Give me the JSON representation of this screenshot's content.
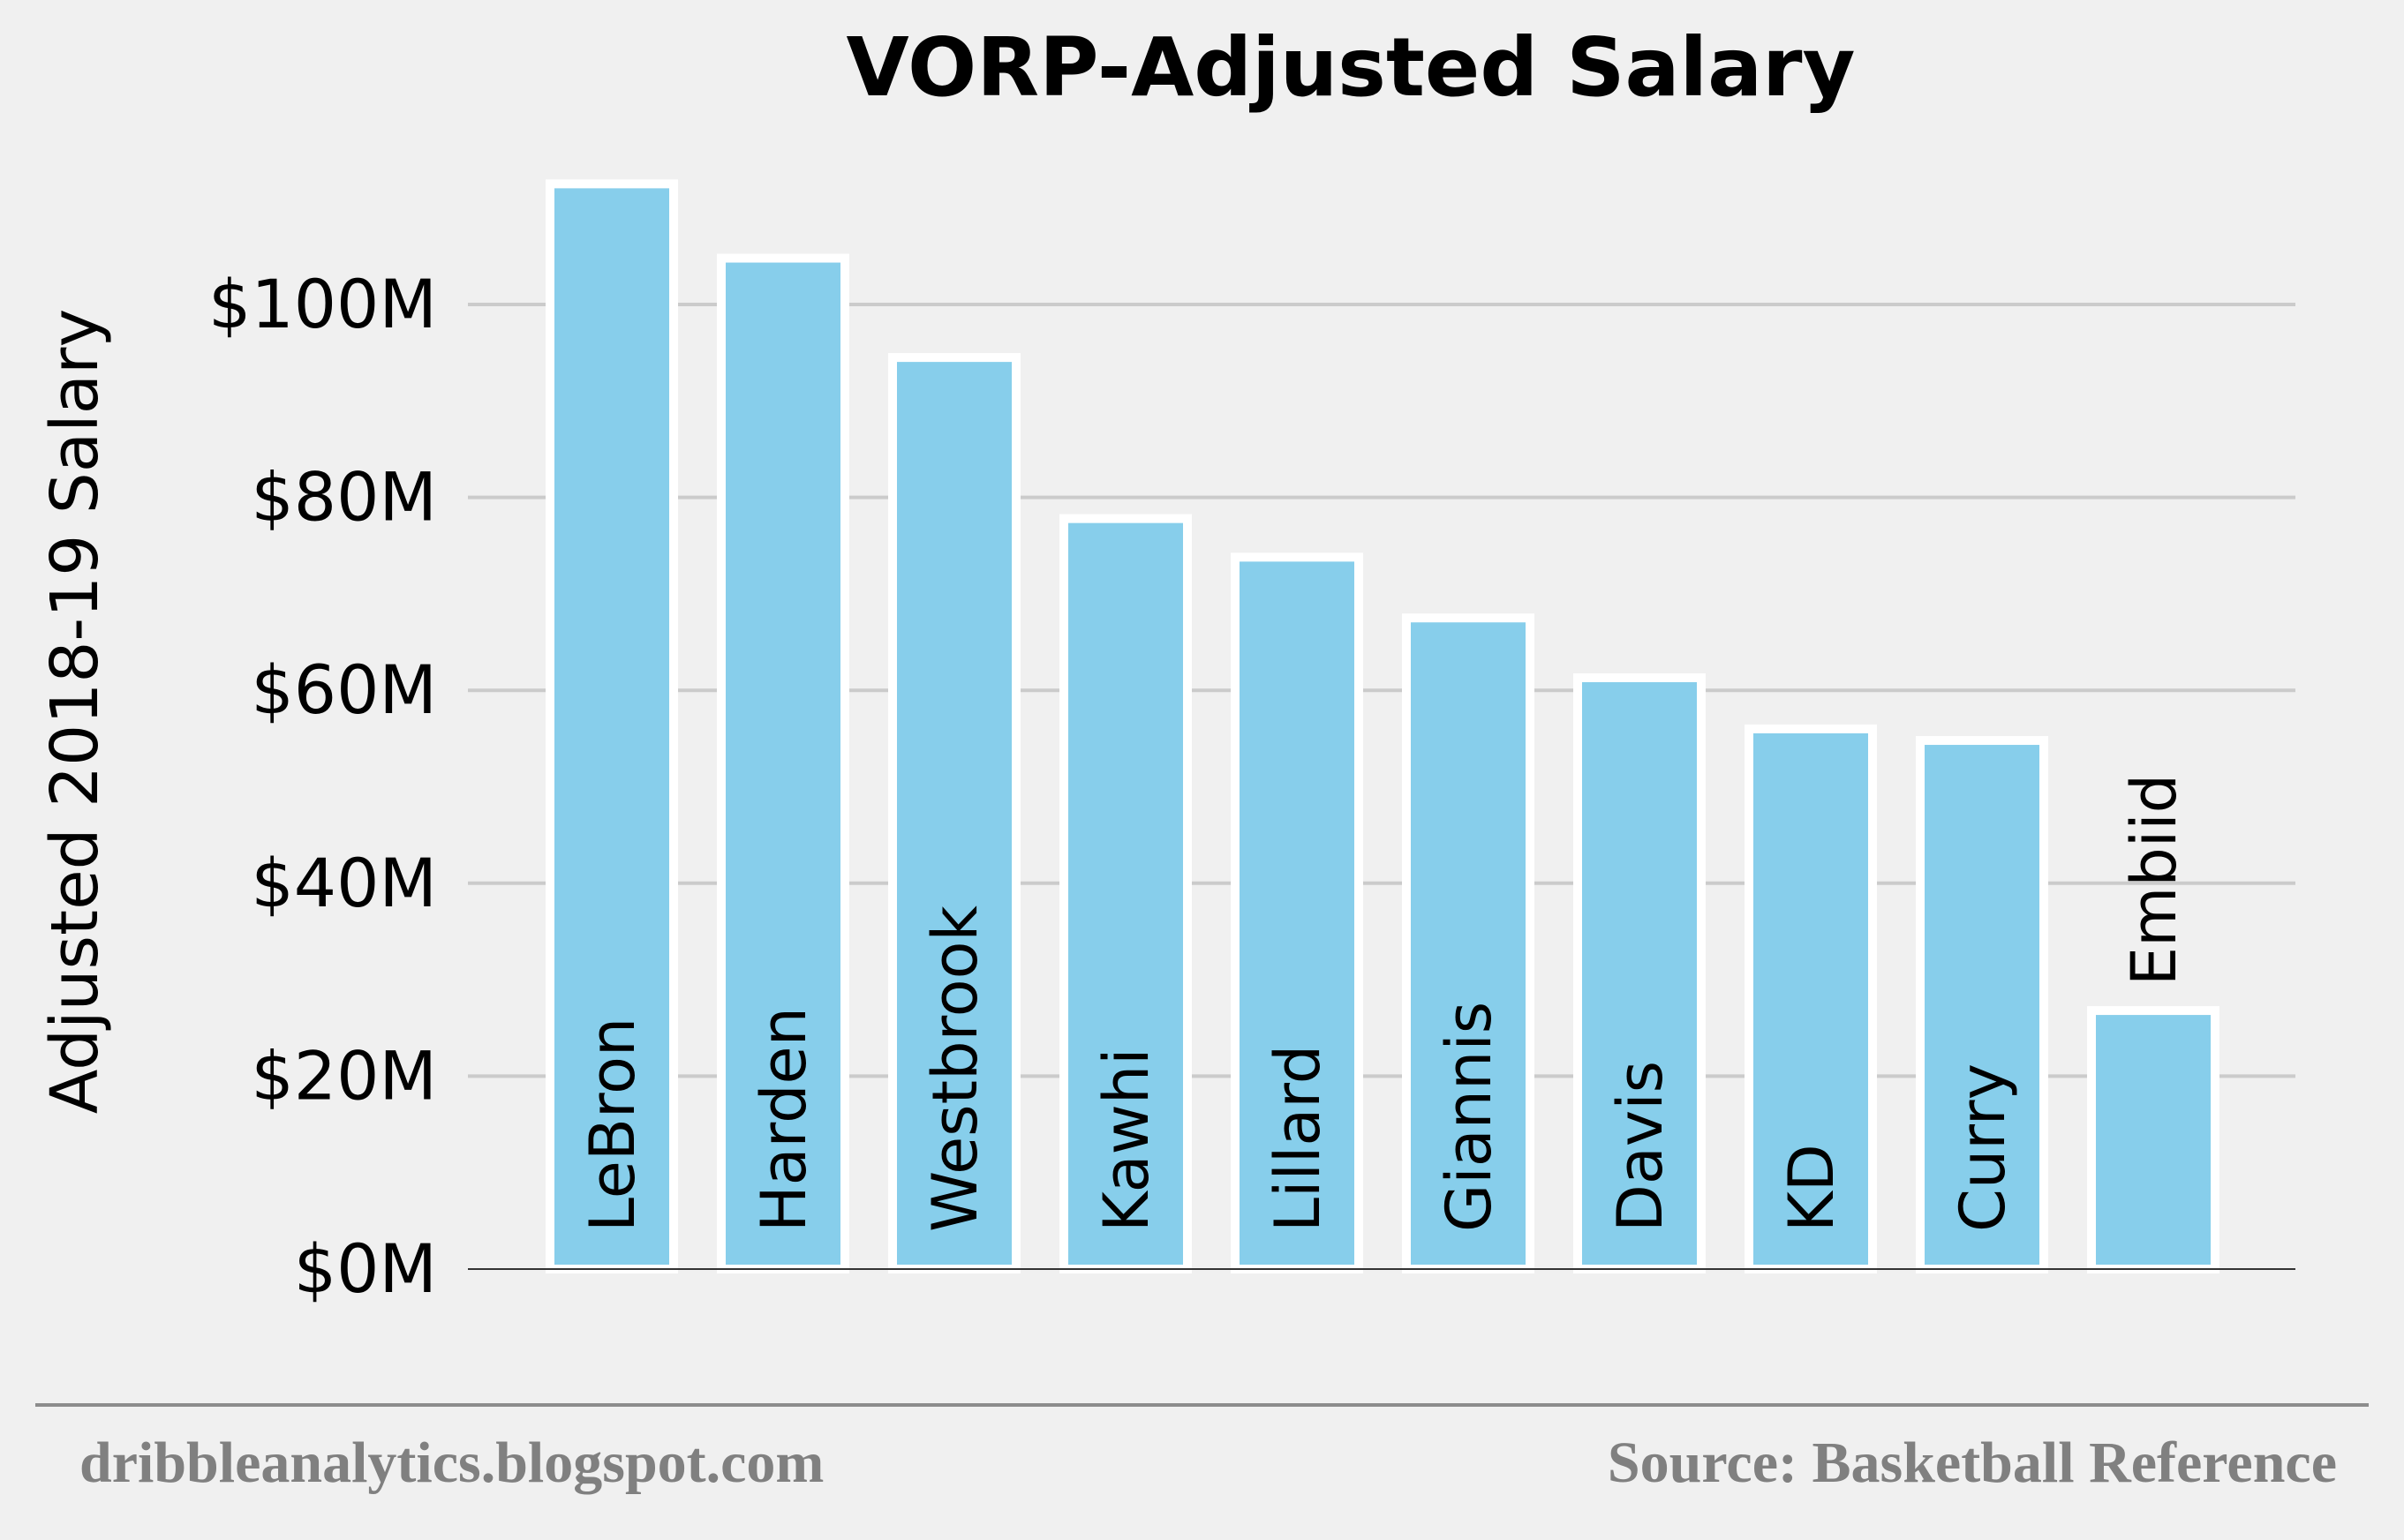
{
  "chart_data": {
    "type": "bar",
    "title": "VORP-Adjusted Salary",
    "ylabel": "Adjusted 2018-19 Salary",
    "xlabel": "",
    "ylim": [
      0,
      115
    ],
    "y_unit": "millions USD",
    "y_ticks": [
      0,
      20,
      40,
      60,
      80,
      100
    ],
    "y_tick_labels": [
      "$0M",
      "$20M",
      "$40M",
      "$60M",
      "$80M",
      "$100M"
    ],
    "categories": [
      "LeBron",
      "Harden",
      "Westbrook",
      "Kawhi",
      "Lillard",
      "Giannis",
      "Davis",
      "KD",
      "Curry",
      "Embiid"
    ],
    "values": [
      112.5,
      104.8,
      94.5,
      77.8,
      73.8,
      67.5,
      61.3,
      56.0,
      54.8,
      26.8
    ],
    "bar_color": "#87ceeb",
    "bar_edge_color": "#ffffff",
    "grid": "horizontal",
    "category_labels_placement": "rotated inside bars"
  },
  "footer": {
    "left": "dribbleanalytics.blogspot.com",
    "right": "Source: Basketball Reference"
  },
  "colors": {
    "background": "#f0f0f0",
    "grid": "#cbcbcb",
    "footer_text": "#808080"
  }
}
